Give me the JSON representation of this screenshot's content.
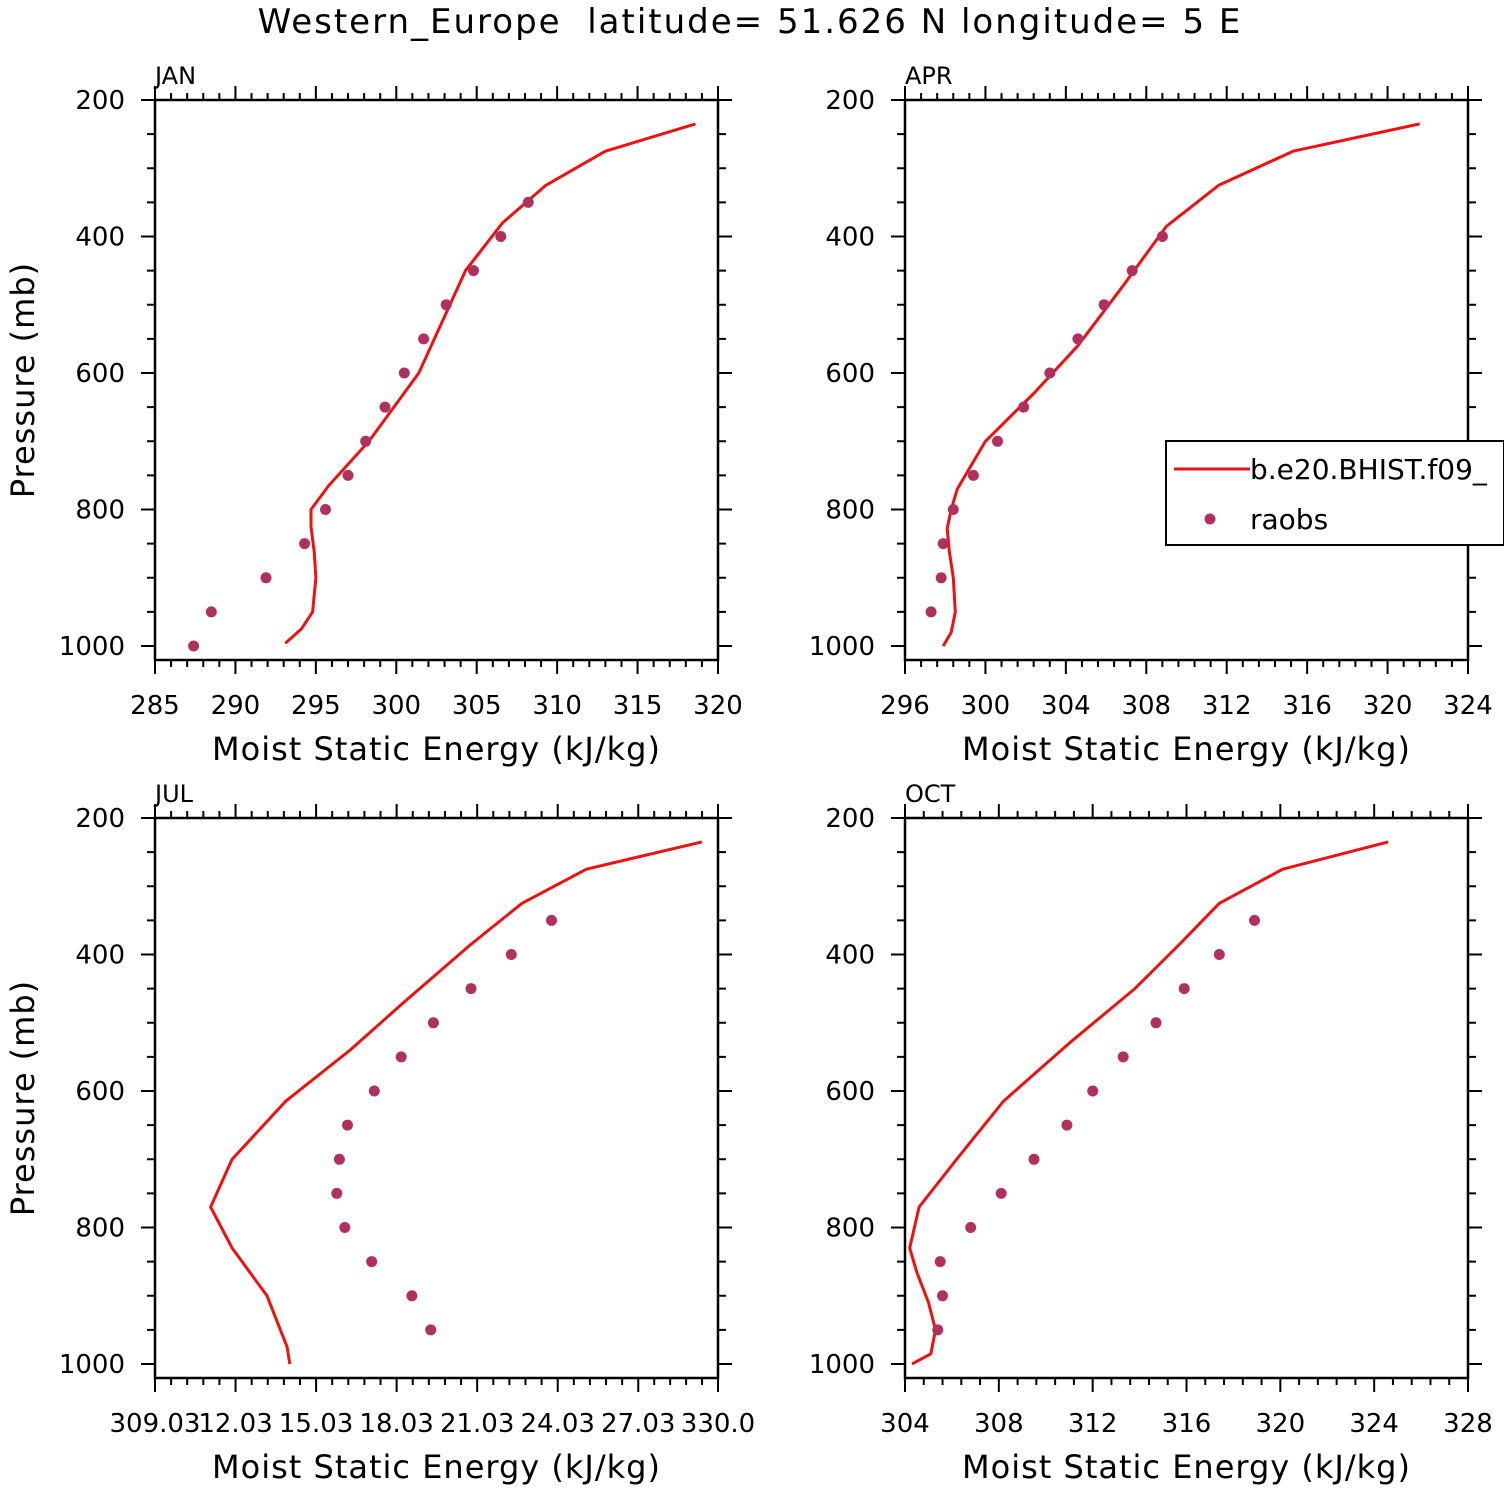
{
  "figure": {
    "title": "Western_Europe  latitude= 51.626 N longitude= 5 E"
  },
  "legend": {
    "entries": [
      {
        "label": "b.e20.BHIST.f09_",
        "style": "line",
        "color": "#ee1111"
      },
      {
        "label": "raobs",
        "style": "marker",
        "color": "#b03060"
      }
    ]
  },
  "chart_data": [
    {
      "type": "line",
      "title": "JAN",
      "xlabel": "Moist Static Energy (kJ/kg)",
      "ylabel": "Pressure (mb)",
      "xlim": [
        285,
        320
      ],
      "ylim": [
        1000,
        200
      ],
      "y_inverted": true,
      "xticks": [
        "285",
        "290",
        "295",
        "300",
        "305",
        "310",
        "315",
        "320"
      ],
      "xtick_values": [
        285,
        290,
        295,
        300,
        305,
        310,
        315,
        320
      ],
      "yticks": [
        "200",
        "400",
        "600",
        "800",
        "1000"
      ],
      "ytick_values": [
        200,
        400,
        600,
        800,
        1000
      ],
      "series": [
        {
          "name": "b.e20.BHIST.f09_",
          "kind": "line",
          "color": "#ee1111",
          "x": [
            293.1,
            294.1,
            294.8,
            295.0,
            294.9,
            294.7,
            294.7,
            295.8,
            298.3,
            301.4,
            304.3,
            306.6,
            309.3,
            313.0,
            318.6
          ],
          "y": [
            996,
            975,
            950,
            900,
            862,
            825,
            800,
            765,
            700,
            600,
            450,
            380,
            325,
            275,
            235
          ]
        },
        {
          "name": "raobs",
          "kind": "scatter",
          "color": "#b03060",
          "x": [
            287.4,
            288.5,
            291.9,
            294.3,
            295.6,
            297.0,
            298.1,
            299.3,
            300.5,
            301.7,
            303.1,
            304.8,
            306.5,
            308.2
          ],
          "y": [
            1000,
            950,
            900,
            850,
            800,
            750,
            700,
            650,
            600,
            550,
            500,
            450,
            400,
            350
          ]
        }
      ]
    },
    {
      "type": "line",
      "title": "APR",
      "xlabel": "Moist Static Energy (kJ/kg)",
      "ylabel": "",
      "xlim": [
        296,
        324
      ],
      "ylim": [
        1000,
        200
      ],
      "y_inverted": true,
      "xticks": [
        "296",
        "300",
        "304",
        "308",
        "312",
        "316",
        "320",
        "324"
      ],
      "xtick_values": [
        296,
        300,
        304,
        308,
        312,
        316,
        320,
        324
      ],
      "yticks": [
        "200",
        "400",
        "600",
        "800",
        "1000"
      ],
      "ytick_values": [
        200,
        400,
        600,
        800,
        1000
      ],
      "series": [
        {
          "name": "b.e20.BHIST.f09_",
          "kind": "line",
          "color": "#ee1111",
          "x": [
            297.9,
            298.3,
            298.5,
            298.4,
            298.2,
            298.1,
            298.3,
            298.6,
            300.0,
            302.4,
            304.6,
            306.9,
            309.0,
            311.6,
            315.3,
            321.6
          ],
          "y": [
            1000,
            980,
            950,
            900,
            860,
            828,
            800,
            770,
            700,
            630,
            560,
            470,
            385,
            325,
            275,
            235
          ]
        },
        {
          "name": "raobs",
          "kind": "scatter",
          "color": "#b03060",
          "x": [
            297.3,
            297.8,
            297.9,
            298.4,
            299.4,
            300.6,
            301.9,
            303.2,
            304.6,
            305.9,
            307.3,
            308.8
          ],
          "y": [
            950,
            900,
            850,
            800,
            750,
            700,
            650,
            600,
            550,
            500,
            450,
            400
          ]
        }
      ]
    },
    {
      "type": "line",
      "title": "JUL",
      "xlabel": "Moist Static Energy (kJ/kg)",
      "ylabel": "Pressure (mb)",
      "xlim": [
        309.03,
        330.0
      ],
      "ylim": [
        1000,
        200
      ],
      "y_inverted": true,
      "xticks": [
        "309.03",
        "12.03",
        "15.03",
        "18.03",
        "21.03",
        "24.03",
        "27.03",
        "330.0"
      ],
      "xtick_values": [
        309.03,
        312.03,
        315.03,
        318.03,
        321.03,
        324.03,
        327.03,
        330.0
      ],
      "yticks": [
        "200",
        "400",
        "600",
        "800",
        "1000"
      ],
      "ytick_values": [
        200,
        400,
        600,
        800,
        1000
      ],
      "series": [
        {
          "name": "b.e20.BHIST.f09_",
          "kind": "line",
          "color": "#ee1111",
          "x": [
            314.05,
            313.95,
            313.7,
            313.2,
            311.9,
            311.1,
            311.9,
            313.9,
            316.3,
            318.3,
            320.8,
            322.7,
            325.1,
            329.4
          ],
          "y": [
            1000,
            975,
            950,
            900,
            830,
            770,
            700,
            615,
            540,
            470,
            385,
            325,
            275,
            235
          ]
        },
        {
          "name": "raobs",
          "kind": "scatter",
          "color": "#b03060",
          "x": [
            319.3,
            318.6,
            317.1,
            316.1,
            315.8,
            315.9,
            316.2,
            317.2,
            318.2,
            319.4,
            320.8,
            322.3,
            323.8
          ],
          "y": [
            950,
            900,
            850,
            800,
            750,
            700,
            650,
            600,
            550,
            500,
            450,
            400,
            350
          ]
        }
      ]
    },
    {
      "type": "line",
      "title": "OCT",
      "xlabel": "Moist Static Energy (kJ/kg)",
      "ylabel": "",
      "xlim": [
        304,
        328
      ],
      "ylim": [
        1000,
        200
      ],
      "y_inverted": true,
      "xticks": [
        "304",
        "308",
        "312",
        "316",
        "320",
        "324",
        "328"
      ],
      "xtick_values": [
        304,
        308,
        312,
        316,
        320,
        324,
        328
      ],
      "yticks": [
        "200",
        "400",
        "600",
        "800",
        "1000"
      ],
      "ytick_values": [
        200,
        400,
        600,
        800,
        1000
      ],
      "series": [
        {
          "name": "b.e20.BHIST.f09_",
          "kind": "line",
          "color": "#ee1111",
          "x": [
            304.3,
            305.1,
            305.3,
            305.0,
            304.5,
            304.2,
            304.6,
            306.2,
            308.2,
            311.0,
            313.8,
            315.7,
            317.4,
            320.1,
            324.6
          ],
          "y": [
            1000,
            985,
            950,
            910,
            865,
            830,
            770,
            700,
            615,
            530,
            450,
            385,
            325,
            275,
            235
          ]
        },
        {
          "name": "raobs",
          "kind": "scatter",
          "color": "#b03060",
          "x": [
            305.4,
            305.6,
            305.5,
            306.8,
            308.1,
            309.5,
            310.9,
            312.0,
            313.3,
            314.7,
            315.9,
            317.4,
            318.9
          ],
          "y": [
            950,
            900,
            850,
            800,
            750,
            700,
            650,
            600,
            550,
            500,
            450,
            400,
            350
          ]
        }
      ]
    }
  ]
}
